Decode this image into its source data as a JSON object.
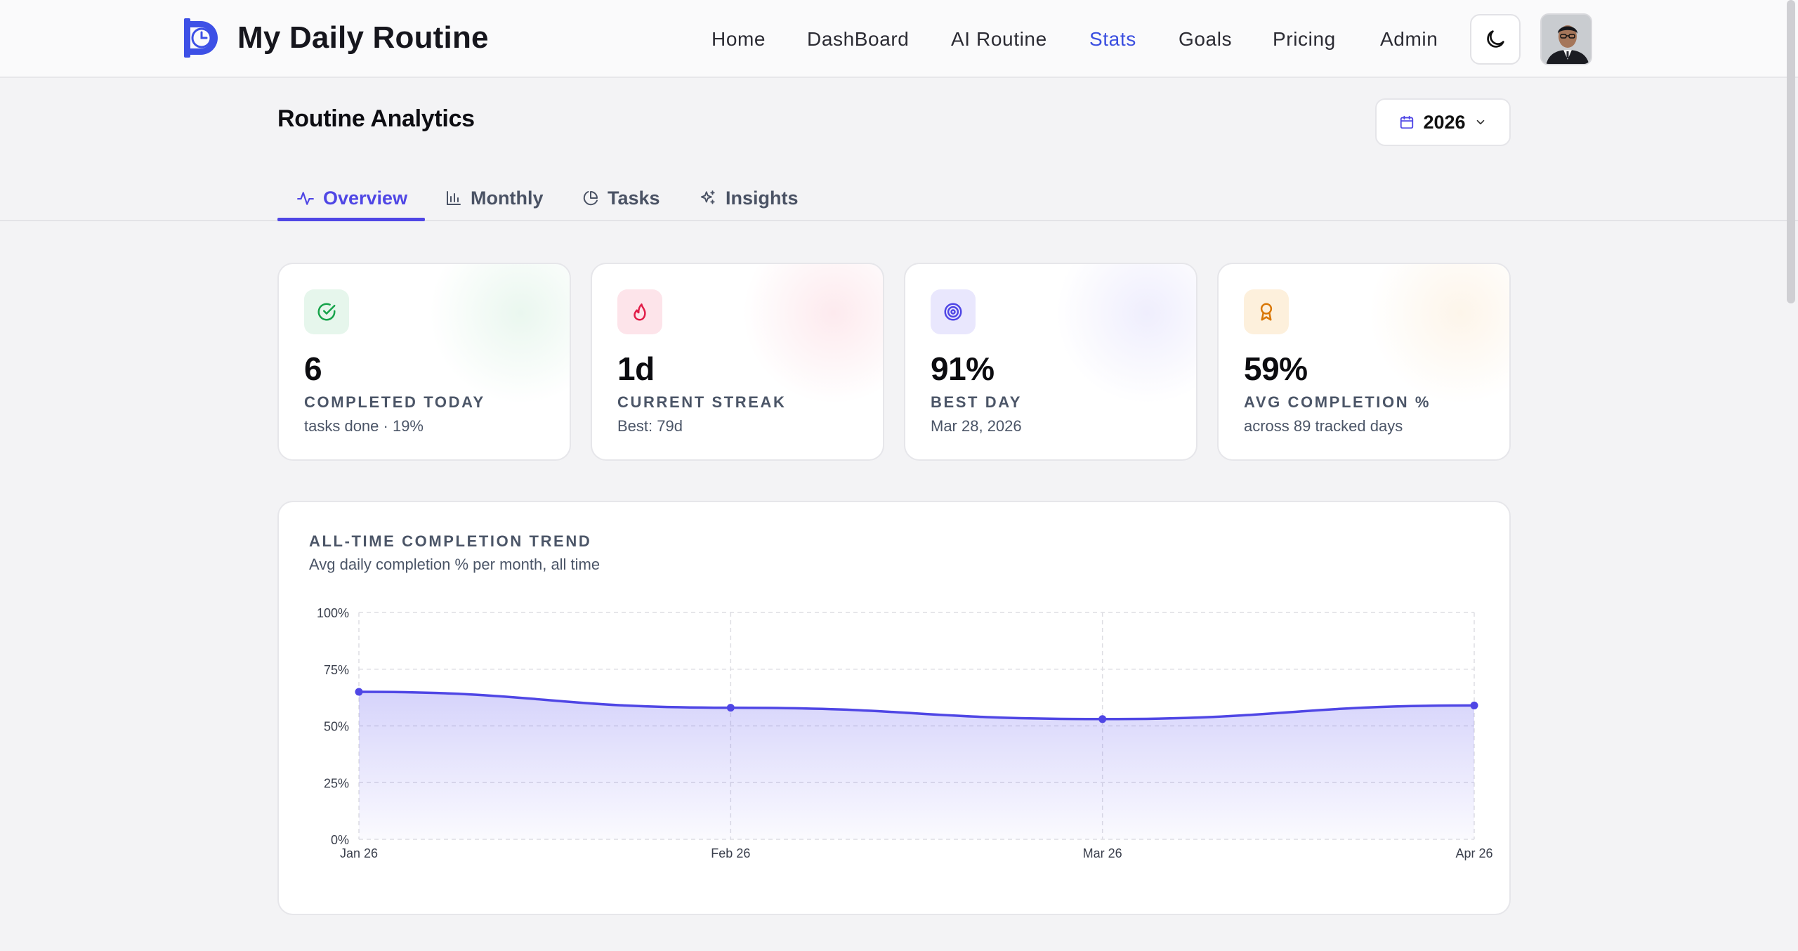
{
  "app": {
    "title": "My Daily Routine"
  },
  "nav": {
    "items": [
      {
        "label": "Home",
        "active": false
      },
      {
        "label": "DashBoard",
        "active": false
      },
      {
        "label": "AI Routine",
        "active": false
      },
      {
        "label": "Stats",
        "active": true
      },
      {
        "label": "Goals",
        "active": false
      },
      {
        "label": "Pricing",
        "active": false
      },
      {
        "label": "Admin",
        "active": false
      }
    ],
    "theme_toggle_icon": "moon-icon",
    "accent_color": "#3b4fe0"
  },
  "page": {
    "title": "Routine Analytics",
    "year_select": {
      "value": "2026",
      "icon": "calendar-icon"
    }
  },
  "tabs": [
    {
      "label": "Overview",
      "icon": "activity-icon",
      "active": true
    },
    {
      "label": "Monthly",
      "icon": "bar-chart-icon",
      "active": false
    },
    {
      "label": "Tasks",
      "icon": "pie-chart-icon",
      "active": false
    },
    {
      "label": "Insights",
      "icon": "sparkles-icon",
      "active": false
    }
  ],
  "stats": [
    {
      "value": "6",
      "label": "COMPLETED TODAY",
      "sub": "tasks done · 19%",
      "icon": "check-circle-icon",
      "color": "#16a34a",
      "bg": "#e6f6ec",
      "glow": "#eaf7ef"
    },
    {
      "value": "1d",
      "label": "CURRENT STREAK",
      "sub": "Best: 79d",
      "icon": "flame-icon",
      "color": "#e11d48",
      "bg": "#fde4ea",
      "glow": "#fdecef"
    },
    {
      "value": "91%",
      "label": "BEST DAY",
      "sub": "Mar 28, 2026",
      "icon": "target-icon",
      "color": "#4f46e5",
      "bg": "#e9e7fd",
      "glow": "#f0effd"
    },
    {
      "value": "59%",
      "label": "AVG COMPLETION %",
      "sub": "across 89 tracked days",
      "icon": "award-icon",
      "color": "#d97706",
      "bg": "#fdf0dc",
      "glow": "#fdf5ea"
    }
  ],
  "chart": {
    "title": "ALL-TIME COMPLETION TREND",
    "subtitle": "Avg daily completion % per month, all time"
  },
  "chart_data": {
    "type": "area",
    "x": [
      "Jan 26",
      "Feb 26",
      "Mar 26",
      "Apr 26"
    ],
    "series": [
      {
        "values": [
          65,
          58,
          53,
          59
        ],
        "color": "#4f46e5"
      }
    ],
    "yticks": [
      "0%",
      "25%",
      "50%",
      "75%",
      "100%"
    ],
    "ylim": [
      0,
      100
    ],
    "grid": true,
    "legend": "none"
  }
}
